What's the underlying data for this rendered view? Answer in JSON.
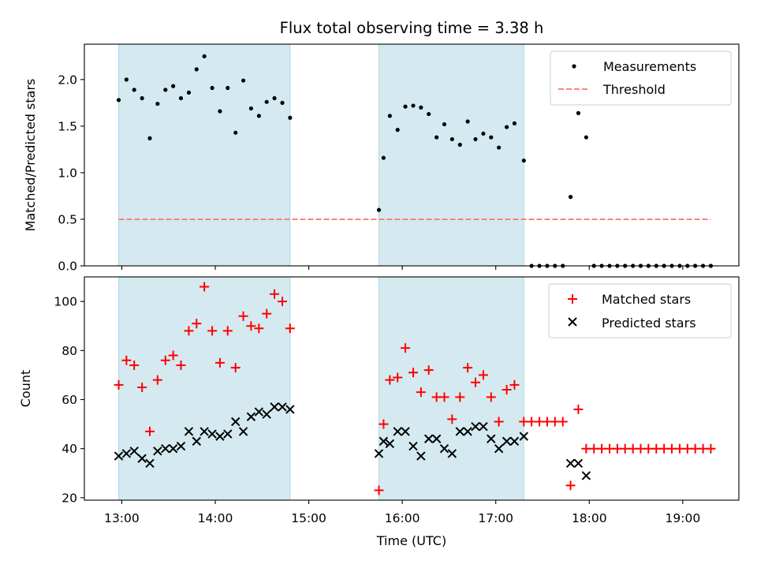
{
  "chart_data": {
    "type": "scatter",
    "title": "Flux total observing time = 3.38 h",
    "xlabel": "Time (UTC)",
    "x_ticks": [
      "13:00",
      "14:00",
      "15:00",
      "16:00",
      "17:00",
      "18:00",
      "19:00"
    ],
    "x_tick_hours": [
      13,
      14,
      15,
      16,
      17,
      18,
      19
    ],
    "xlim_hours": [
      12.6,
      19.6
    ],
    "highlight_color": "#d4eaf0",
    "observing_windows_hours": [
      [
        12.967,
        14.8
      ],
      [
        15.75,
        17.3
      ]
    ],
    "panels": [
      {
        "ylabel": "Matched/Predicted stars",
        "ylim": [
          0,
          2.38
        ],
        "y_ticks": [
          "0.0",
          "0.5",
          "1.0",
          "1.5",
          "2.0"
        ],
        "y_tick_values": [
          0,
          0.5,
          1.0,
          1.5,
          2.0
        ],
        "legend_position": "upper-right",
        "series": [
          {
            "name": "Measurements",
            "marker": "dot",
            "color": "#000000",
            "x": [
              12.967,
              13.05,
              13.133,
              13.217,
              13.3,
              13.383,
              13.467,
              13.55,
              13.633,
              13.717,
              13.8,
              13.883,
              13.967,
              14.05,
              14.133,
              14.217,
              14.3,
              14.383,
              14.467,
              14.55,
              14.633,
              14.717,
              14.8,
              15.75,
              15.8,
              15.867,
              15.95,
              16.033,
              16.117,
              16.2,
              16.283,
              16.367,
              16.45,
              16.533,
              16.617,
              16.7,
              16.783,
              16.867,
              16.95,
              17.033,
              17.117,
              17.2,
              17.3,
              17.383,
              17.467,
              17.55,
              17.633,
              17.717,
              17.8,
              17.883,
              17.967,
              18.05,
              18.133,
              18.217,
              18.3,
              18.383,
              18.467,
              18.55,
              18.633,
              18.717,
              18.8,
              18.883,
              18.967,
              19.05,
              19.133,
              19.217,
              19.3
            ],
            "y": [
              1.78,
              2.0,
              1.89,
              1.8,
              1.37,
              1.74,
              1.89,
              1.93,
              1.8,
              1.86,
              2.11,
              2.25,
              1.91,
              1.66,
              1.91,
              1.43,
              1.99,
              1.69,
              1.61,
              1.76,
              1.8,
              1.75,
              1.59,
              0.6,
              1.16,
              1.61,
              1.46,
              1.71,
              1.72,
              1.7,
              1.63,
              1.38,
              1.52,
              1.36,
              1.3,
              1.55,
              1.36,
              1.42,
              1.38,
              1.27,
              1.49,
              1.53,
              1.13,
              0.0,
              0.0,
              0.0,
              0.0,
              0.0,
              0.74,
              1.64,
              1.38,
              0.0,
              0.0,
              0.0,
              0.0,
              0.0,
              0.0,
              0.0,
              0.0,
              0.0,
              0.0,
              0.0,
              0.0,
              0.0,
              0.0,
              0.0,
              0.0
            ]
          },
          {
            "name": "Threshold",
            "marker": "dashed-line",
            "color": "#ff8080",
            "x": [
              12.967,
              19.3
            ],
            "y": [
              0.5,
              0.5
            ]
          }
        ]
      },
      {
        "ylabel": "Count",
        "ylim": [
          19,
          110
        ],
        "y_ticks": [
          "20",
          "40",
          "60",
          "80",
          "100"
        ],
        "y_tick_values": [
          20,
          40,
          60,
          80,
          100
        ],
        "legend_position": "upper-right",
        "series": [
          {
            "name": "Matched stars",
            "marker": "plus",
            "color": "#ff0000",
            "x": [
              12.967,
              13.05,
              13.133,
              13.217,
              13.3,
              13.383,
              13.467,
              13.55,
              13.633,
              13.717,
              13.8,
              13.883,
              13.967,
              14.05,
              14.133,
              14.217,
              14.3,
              14.383,
              14.467,
              14.55,
              14.633,
              14.717,
              14.8,
              15.75,
              15.8,
              15.867,
              15.95,
              16.033,
              16.117,
              16.2,
              16.283,
              16.367,
              16.45,
              16.533,
              16.617,
              16.7,
              16.783,
              16.867,
              16.95,
              17.033,
              17.117,
              17.2,
              17.3,
              17.383,
              17.467,
              17.55,
              17.633,
              17.717,
              17.8,
              17.883,
              17.967,
              18.05,
              18.133,
              18.217,
              18.3,
              18.383,
              18.467,
              18.55,
              18.633,
              18.717,
              18.8,
              18.883,
              18.967,
              19.05,
              19.133,
              19.217,
              19.3
            ],
            "y": [
              66,
              76,
              74,
              65,
              47,
              68,
              76,
              78,
              74,
              88,
              91,
              106,
              88,
              75,
              88,
              73,
              94,
              90,
              89,
              95,
              103,
              100,
              89,
              23,
              50,
              68,
              69,
              81,
              71,
              63,
              72,
              61,
              61,
              52,
              61,
              73,
              67,
              70,
              61,
              51,
              64,
              66,
              51,
              51,
              51,
              51,
              51,
              51,
              25,
              56,
              40,
              40,
              40,
              40,
              40,
              40,
              40,
              40,
              40,
              40,
              40,
              40,
              40,
              40,
              40,
              40,
              40
            ]
          },
          {
            "name": "Predicted stars",
            "marker": "x",
            "color": "#000000",
            "x": [
              12.967,
              13.05,
              13.133,
              13.217,
              13.3,
              13.383,
              13.467,
              13.55,
              13.633,
              13.717,
              13.8,
              13.883,
              13.967,
              14.05,
              14.133,
              14.217,
              14.3,
              14.383,
              14.467,
              14.55,
              14.633,
              14.717,
              14.8,
              15.75,
              15.8,
              15.867,
              15.95,
              16.033,
              16.117,
              16.2,
              16.283,
              16.367,
              16.45,
              16.533,
              16.617,
              16.7,
              16.783,
              16.867,
              16.95,
              17.033,
              17.117,
              17.2,
              17.3,
              17.8,
              17.883,
              17.967
            ],
            "y": [
              37,
              38,
              39,
              36,
              34,
              39,
              40,
              40,
              41,
              47,
              43,
              47,
              46,
              45,
              46,
              51,
              47,
              53,
              55,
              54,
              57,
              57,
              56,
              38,
              43,
              42,
              47,
              47,
              41,
              37,
              44,
              44,
              40,
              38,
              47,
              47,
              49,
              49,
              44,
              40,
              43,
              43,
              45,
              34,
              34,
              29
            ]
          }
        ]
      }
    ]
  }
}
